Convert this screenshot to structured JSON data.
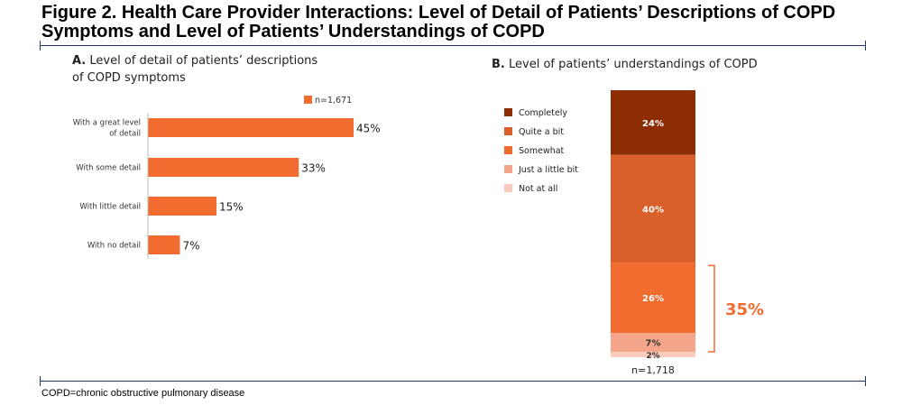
{
  "title_line1": "Figure 2. Health Care Provider Interactions: Level of Detail of Patients’ Descriptions of COPD",
  "title_line2": "Symptoms and Level of Patients’ Understandings of COPD",
  "panel_a": {
    "letter": "A.",
    "title_line1": "Level of detail of patients’ descriptions",
    "title_line2": "of COPD symptoms"
  },
  "panel_b": {
    "letter": "B.",
    "title": "Level of patients’ understandings of COPD"
  },
  "footnote": "COPD=chronic obstructive pulmonary disease",
  "chart_data": [
    {
      "type": "bar",
      "orientation": "horizontal",
      "title": "Level of detail of patients’ descriptions of COPD symptoms",
      "categories": [
        [
          "With a great level",
          "of detail"
        ],
        [
          "With some detail"
        ],
        [
          "With little detail"
        ],
        [
          "With no detail"
        ]
      ],
      "values": [
        45,
        33,
        15,
        7
      ],
      "value_labels": [
        "45%",
        "33%",
        "15%",
        "7%"
      ],
      "xlim": [
        0,
        45
      ],
      "legend": {
        "label": "n=1,671",
        "placement": "top-right"
      },
      "color": "#f26b2f"
    },
    {
      "type": "bar",
      "orientation": "stacked-vertical",
      "title": "Level of patients’ understandings of COPD",
      "series": [
        {
          "name": "Completely",
          "value": 24,
          "label": "24%",
          "color": "#8c2d04"
        },
        {
          "name": "Quite a bit",
          "value": 40,
          "label": "40%",
          "color": "#d95f2b"
        },
        {
          "name": "Somewhat",
          "value": 26,
          "label": "26%",
          "color": "#f26b2f"
        },
        {
          "name": "Just a little bit",
          "value": 7,
          "label": "7%",
          "color": "#f4a58a"
        },
        {
          "name": "Not at all",
          "value": 2,
          "label": "2%",
          "color": "#f9cbbd"
        }
      ],
      "category_label": "n=1,718",
      "bracket": {
        "label": "35%",
        "color": "#f26b2f"
      },
      "legend": {
        "placement": "left"
      }
    }
  ]
}
